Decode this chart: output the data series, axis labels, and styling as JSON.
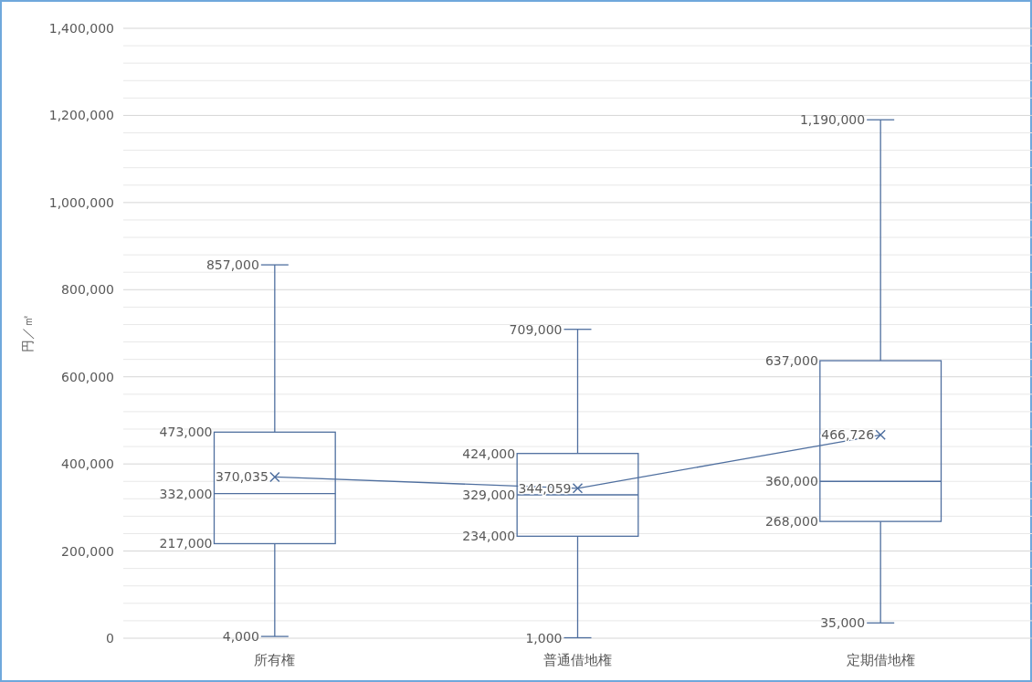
{
  "chart_data": {
    "type": "box",
    "ylabel": "円／㎡",
    "categories": [
      "所有権",
      "普通借地権",
      "定期借地権"
    ],
    "ylim": [
      0,
      1400000
    ],
    "yticks": [
      {
        "value": 0,
        "label": "0"
      },
      {
        "value": 40000,
        "label": null
      },
      {
        "value": 80000,
        "label": null
      },
      {
        "value": 120000,
        "label": null
      },
      {
        "value": 160000,
        "label": null
      },
      {
        "value": 200000,
        "label": "200,000"
      },
      {
        "value": 240000,
        "label": null
      },
      {
        "value": 280000,
        "label": null
      },
      {
        "value": 320000,
        "label": null
      },
      {
        "value": 360000,
        "label": null
      },
      {
        "value": 400000,
        "label": "400,000"
      },
      {
        "value": 440000,
        "label": null
      },
      {
        "value": 480000,
        "label": null
      },
      {
        "value": 520000,
        "label": null
      },
      {
        "value": 560000,
        "label": null
      },
      {
        "value": 600000,
        "label": "600,000"
      },
      {
        "value": 640000,
        "label": null
      },
      {
        "value": 680000,
        "label": null
      },
      {
        "value": 720000,
        "label": null
      },
      {
        "value": 760000,
        "label": null
      },
      {
        "value": 800000,
        "label": "800,000"
      },
      {
        "value": 840000,
        "label": null
      },
      {
        "value": 880000,
        "label": null
      },
      {
        "value": 920000,
        "label": null
      },
      {
        "value": 960000,
        "label": null
      },
      {
        "value": 1000000,
        "label": "1,000,000"
      },
      {
        "value": 1040000,
        "label": null
      },
      {
        "value": 1080000,
        "label": null
      },
      {
        "value": 1120000,
        "label": null
      },
      {
        "value": 1160000,
        "label": null
      },
      {
        "value": 1200000,
        "label": "1,200,000"
      },
      {
        "value": 1240000,
        "label": null
      },
      {
        "value": 1280000,
        "label": null
      },
      {
        "value": 1320000,
        "label": null
      },
      {
        "value": 1360000,
        "label": null
      },
      {
        "value": 1400000,
        "label": "1,400,000"
      }
    ],
    "grid": "y",
    "series": [
      {
        "color": "#4f6f9f",
        "boxes": [
          {
            "low": 4000,
            "q1": 217000,
            "median": 332000,
            "q3": 473000,
            "high": 857000
          },
          {
            "low": 1000,
            "q1": 234000,
            "median": 329000,
            "q3": 424000,
            "high": 709000
          },
          {
            "low": 35000,
            "q1": 268000,
            "median": 360000,
            "q3": 637000,
            "high": 1190000
          }
        ]
      },
      {
        "type": "line",
        "color": "#4f6f9f",
        "marker": "cross",
        "values": [
          370035,
          344059,
          466726
        ],
        "value_labels": [
          "370,035",
          "344,059",
          "466,726"
        ]
      }
    ],
    "annotations": [
      "857,000",
      "473,000",
      "332,000",
      "217,000",
      "4,000",
      "709,000",
      "424,000",
      "329,000",
      "234,000",
      "1,000",
      "1,190,000",
      "637,000",
      "360,000",
      "268,000",
      "35,000"
    ]
  }
}
